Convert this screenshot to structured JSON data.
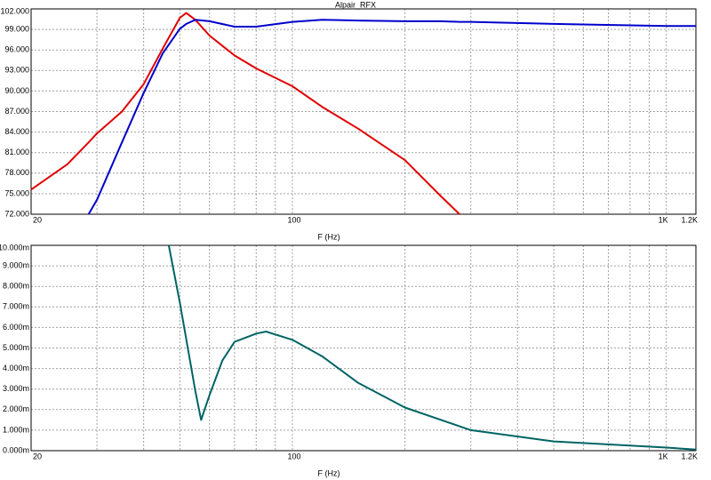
{
  "chart_data": [
    {
      "type": "line",
      "title": "Alpair_RFX",
      "xlabel": "F (Hz)",
      "xscale": "log",
      "x": [
        20,
        25,
        28.5,
        30,
        35,
        40,
        45,
        50,
        52,
        55,
        60,
        70,
        80,
        100,
        120,
        150,
        200,
        250,
        280,
        300,
        500,
        1000,
        1200
      ],
      "series": [
        {
          "color": "#e00000",
          "values": [
            75.6,
            79.3,
            82.5,
            83.8,
            87,
            91,
            96.2,
            100.7,
            101.4,
            100.4,
            98.1,
            95.2,
            93.3,
            90.7,
            87.7,
            84.5,
            79.9,
            74.6,
            72,
            null,
            null,
            null,
            null
          ]
        },
        {
          "color": "#0000cc",
          "values": [
            null,
            null,
            72,
            74.1,
            82.5,
            89.7,
            95.5,
            99.1,
            99.8,
            100.4,
            100.2,
            99.4,
            99.4,
            100.1,
            100.4,
            100.3,
            100.2,
            100.2,
            100.1,
            100.1,
            99.8,
            99.5,
            99.5
          ]
        }
      ],
      "xlim": [
        20,
        1200
      ],
      "xticks": [
        20,
        100,
        {
          "value": 1000,
          "label": "1K"
        },
        {
          "value": 1200,
          "label": "1.2K"
        }
      ],
      "xminor": [
        30,
        40,
        50,
        60,
        70,
        80,
        90,
        200,
        300,
        400,
        500,
        600,
        700,
        800,
        900
      ],
      "ylim": [
        72,
        102
      ],
      "yticks": [
        {
          "value": 72,
          "label": "72.000"
        },
        {
          "value": 75,
          "label": "75.000"
        },
        {
          "value": 78,
          "label": "78.000"
        },
        {
          "value": 81,
          "label": "81.000"
        },
        {
          "value": 84,
          "label": "84.000"
        },
        {
          "value": 87,
          "label": "87.000"
        },
        {
          "value": 90,
          "label": "90.000"
        },
        {
          "value": 93,
          "label": "93.000"
        },
        {
          "value": 96,
          "label": "96.000"
        },
        {
          "value": 99,
          "label": "99.000"
        },
        {
          "value": 102,
          "label": "102.000"
        }
      ],
      "grid": true
    },
    {
      "type": "line",
      "xlabel": "F (Hz)",
      "xscale": "log",
      "x": [
        46.7,
        50,
        55,
        57,
        60,
        65,
        70,
        80,
        85,
        100,
        120,
        150,
        200,
        300,
        500,
        1000,
        1200
      ],
      "series": [
        {
          "color": "#006464",
          "values": [
            0.01,
            0.0072,
            0.0029,
            0.0015,
            0.0027,
            0.0044,
            0.0053,
            0.0057,
            0.0058,
            0.0054,
            0.0046,
            0.0033,
            0.0021,
            0.001,
            0.00045,
            0.00015,
            5e-05
          ]
        }
      ],
      "xlim": [
        20,
        1200
      ],
      "xticks": [
        20,
        100,
        {
          "value": 1000,
          "label": "1K"
        },
        {
          "value": 1200,
          "label": "1.2K"
        }
      ],
      "xminor": [
        30,
        40,
        50,
        60,
        70,
        80,
        90,
        200,
        300,
        400,
        500,
        600,
        700,
        800,
        900
      ],
      "ylim": [
        0,
        0.01
      ],
      "yticks": [
        {
          "value": 0,
          "label": "0.000m"
        },
        {
          "value": 0.001,
          "label": "1.000m"
        },
        {
          "value": 0.002,
          "label": "2.000m"
        },
        {
          "value": 0.003,
          "label": "3.000m"
        },
        {
          "value": 0.004,
          "label": "4.000m"
        },
        {
          "value": 0.005,
          "label": "5.000m"
        },
        {
          "value": 0.006,
          "label": "6.000m"
        },
        {
          "value": 0.007,
          "label": "7.000m"
        },
        {
          "value": 0.008,
          "label": "8.000m"
        },
        {
          "value": 0.009,
          "label": "9.000m"
        },
        {
          "value": 0.01,
          "label": "10.000m"
        }
      ],
      "grid": true
    }
  ]
}
